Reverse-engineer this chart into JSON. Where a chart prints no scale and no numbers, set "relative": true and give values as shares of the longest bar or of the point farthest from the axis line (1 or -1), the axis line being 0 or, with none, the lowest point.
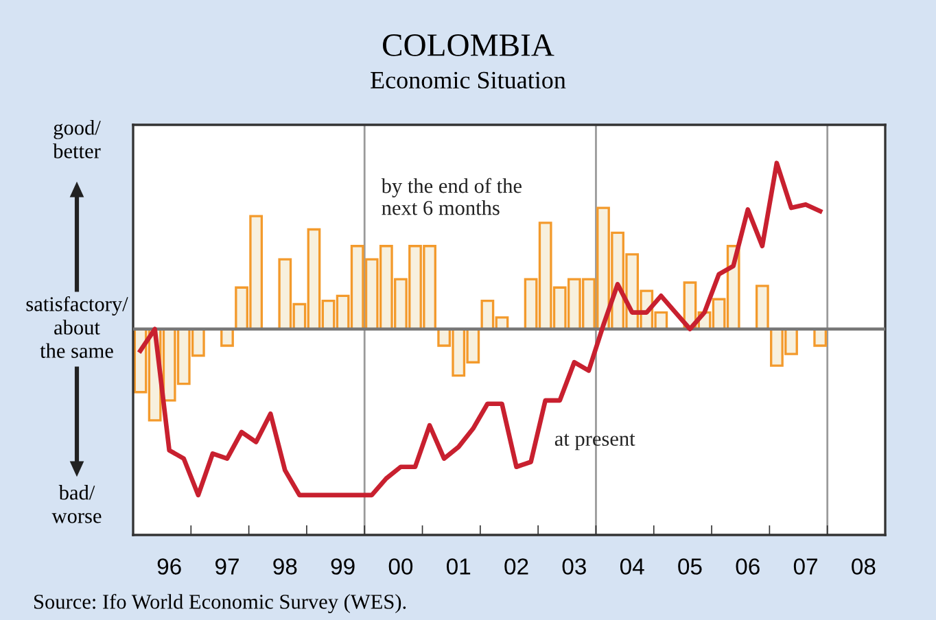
{
  "chart_data": {
    "type": "bar",
    "title": "COLOMBIA",
    "subtitle": "Economic Situation",
    "relative": true,
    "annotations": [
      "good/\nbetter",
      "satisfactory/\nabout\nthe same",
      "bad/\nworse",
      "Source: Ifo World Economic Survey (WES)."
    ],
    "categories": [
      null,
      null,
      "96",
      null,
      null,
      null,
      "97",
      null,
      null,
      null,
      "98",
      null,
      null,
      null,
      "99",
      null,
      null,
      null,
      "00",
      null,
      null,
      null,
      "01",
      null,
      null,
      null,
      "02",
      null,
      null,
      null,
      "03",
      null,
      null,
      null,
      "04",
      null,
      null,
      null,
      "05",
      null,
      null,
      null,
      "06",
      null,
      null,
      null,
      "07",
      null,
      null,
      null,
      "08",
      null
    ],
    "series": [
      {
        "name": "by the end of the\nnext 6 months",
        "color": "#f39a2c",
        "values": [
          -0.38,
          -0.55,
          -0.43,
          -0.33,
          -0.16,
          null,
          -0.1,
          0.25,
          0.68,
          null,
          0.42,
          0.15,
          0.6,
          0.17,
          0.2,
          0.5,
          0.42,
          0.5,
          0.3,
          0.5,
          0.5,
          -0.1,
          -0.28,
          -0.2,
          0.17,
          0.07,
          null,
          0.3,
          0.64,
          0.25,
          0.3,
          0.3,
          0.73,
          0.58,
          0.45,
          0.23,
          0.1,
          null,
          0.28,
          0.1,
          0.18,
          0.5,
          null,
          0.26,
          -0.22,
          -0.15,
          null,
          -0.1,
          null,
          null,
          null,
          null
        ]
      },
      {
        "name": "at present",
        "type": "line",
        "color": "#c8202f",
        "values": [
          -0.13,
          0,
          -0.73,
          -0.78,
          -1,
          -0.75,
          -0.78,
          -0.62,
          -0.68,
          -0.51,
          -0.85,
          -1,
          -1,
          -1,
          -1,
          -1,
          -1,
          -0.9,
          -0.83,
          -0.83,
          -0.58,
          -0.78,
          -0.71,
          -0.6,
          -0.45,
          -0.45,
          -0.83,
          -0.8,
          -0.43,
          -0.43,
          -0.2,
          -0.25,
          0.02,
          0.27,
          0.1,
          0.1,
          0.2,
          0.1,
          0,
          0.1,
          0.33,
          0.38,
          0.72,
          0.5,
          1,
          0.73,
          0.75,
          0.71,
          null,
          null,
          null,
          null
        ]
      }
    ],
    "grid": false
  }
}
